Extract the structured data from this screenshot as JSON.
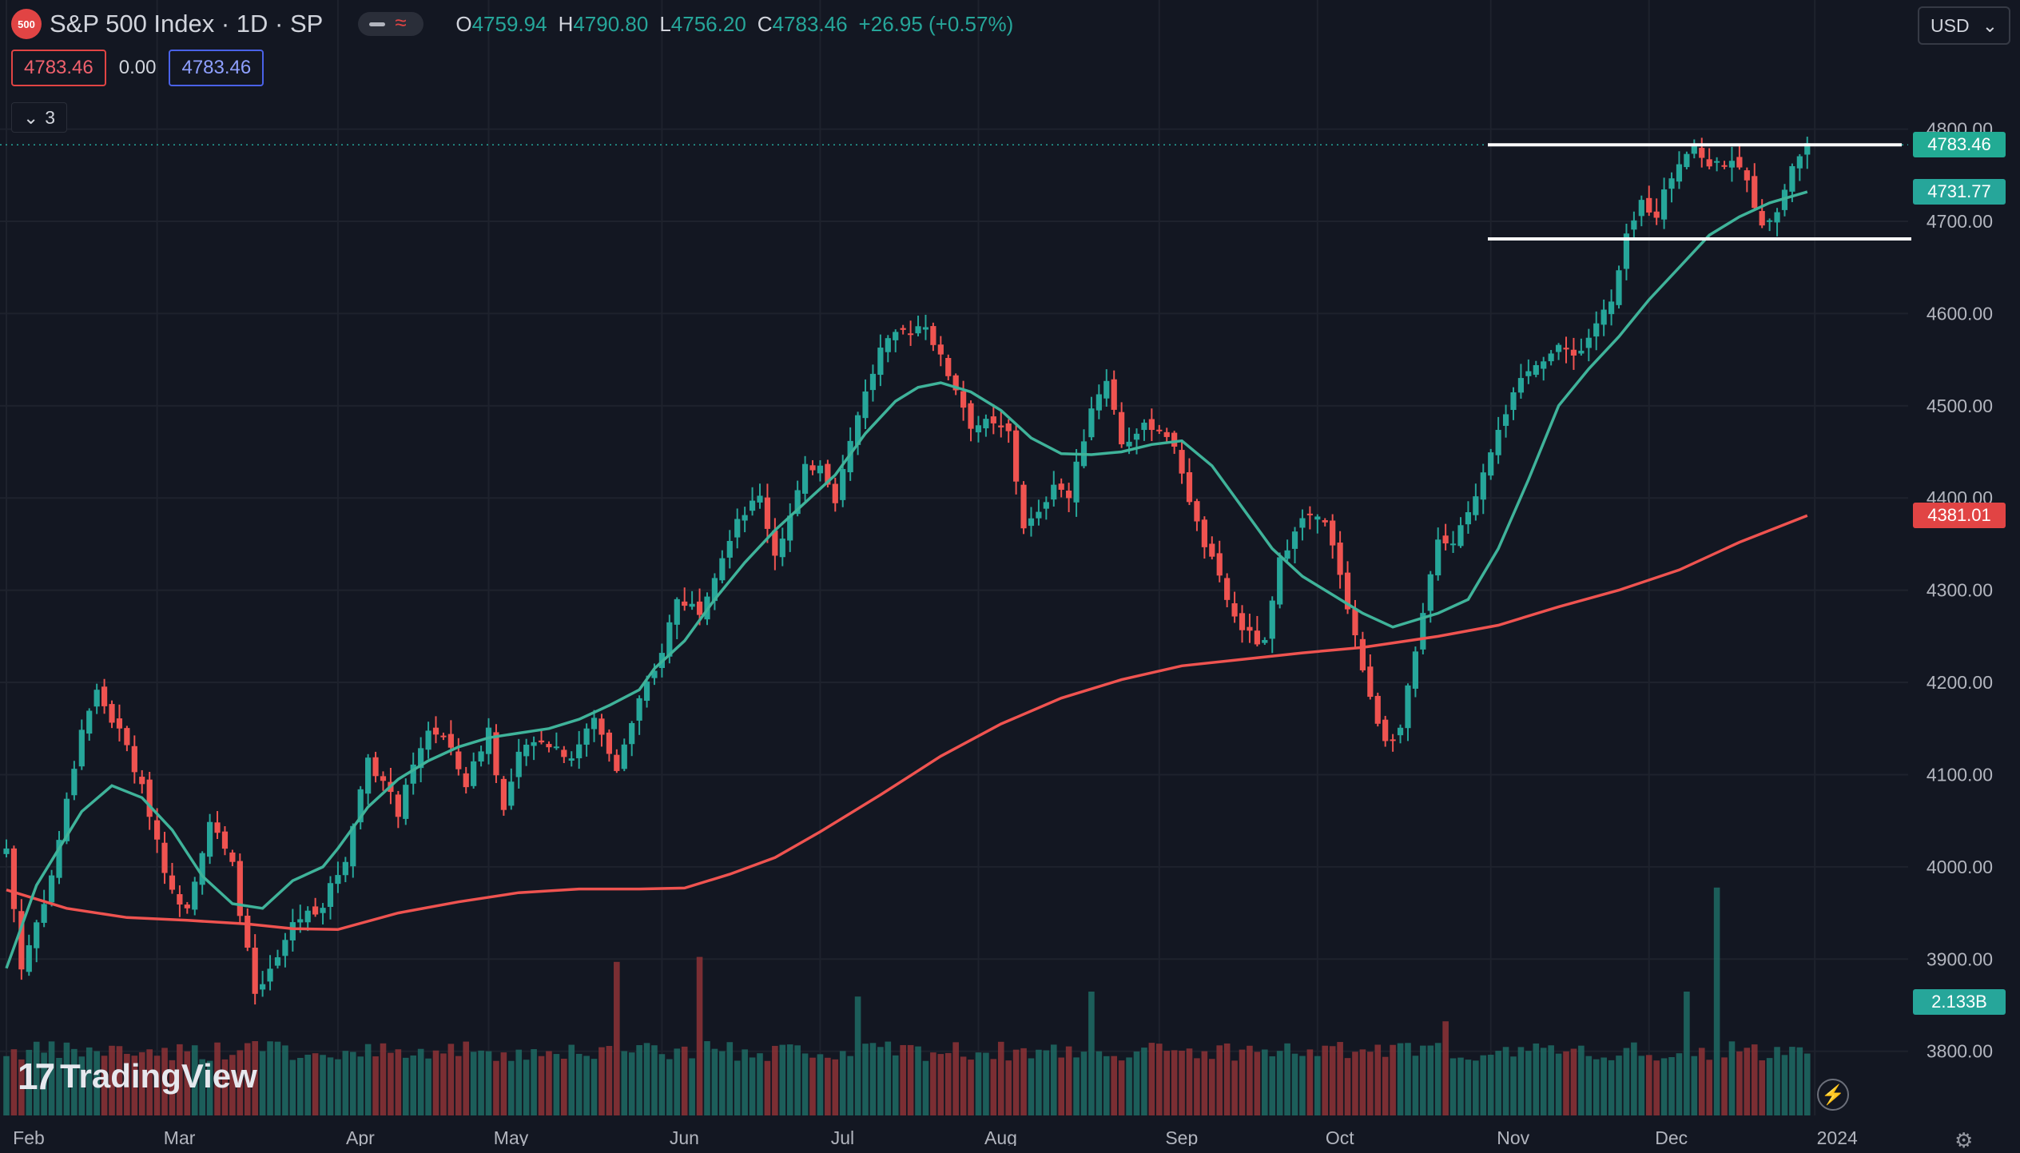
{
  "header": {
    "logo_text": "500",
    "symbol_title": "S&P 500 Index · 1D · SP",
    "ohlc": [
      {
        "key": "O",
        "value": "4759.94"
      },
      {
        "key": "H",
        "value": "4790.80"
      },
      {
        "key": "L",
        "value": "4756.20"
      },
      {
        "key": "C",
        "value": "4783.46"
      }
    ],
    "change": "+26.95 (+0.57%)",
    "sell_price": "4783.46",
    "spread": "0.00",
    "buy_price": "4783.46",
    "collapsed_count": "3",
    "currency": "USD"
  },
  "price_labels": {
    "last": "4783.46",
    "ma20": "4731.77",
    "ma200": "4381.01",
    "volume": "2.133B"
  },
  "watermark": "TradingView",
  "colors": {
    "background": "#131722",
    "up": "#26a69a",
    "down": "#ef5350",
    "ma_fast": "#3fb39a",
    "ma_slow": "#ef5350",
    "level_lines": "#ffffff"
  },
  "chart_data": {
    "type": "candlestick",
    "ylim": [
      3720,
      4830
    ],
    "y_ticks": [
      "4800.00",
      "4700.00",
      "4600.00",
      "4500.00",
      "4400.00",
      "4300.00",
      "4200.00",
      "4100.00",
      "4000.00",
      "3900.00",
      "3800.00"
    ],
    "x_ticks": [
      "Feb",
      "Mar",
      "Apr",
      "May",
      "Jun",
      "Jul",
      "Aug",
      "Sep",
      "Oct",
      "Nov",
      "Dec",
      "2024"
    ],
    "x_tick_days": [
      0,
      20,
      44,
      64,
      87,
      108,
      129,
      153,
      174,
      197,
      218,
      240
    ],
    "horizontal_levels": [
      4783,
      4681
    ],
    "days": 253,
    "anchors": [
      [
        0,
        4020
      ],
      [
        2,
        3890
      ],
      [
        6,
        3990
      ],
      [
        10,
        4150
      ],
      [
        12,
        4190
      ],
      [
        16,
        4130
      ],
      [
        19,
        4060
      ],
      [
        22,
        3970
      ],
      [
        24,
        3960
      ],
      [
        27,
        4050
      ],
      [
        30,
        4000
      ],
      [
        33,
        3860
      ],
      [
        36,
        3900
      ],
      [
        38,
        3940
      ],
      [
        42,
        3960
      ],
      [
        45,
        4010
      ],
      [
        48,
        4120
      ],
      [
        52,
        4060
      ],
      [
        56,
        4150
      ],
      [
        58,
        4140
      ],
      [
        61,
        4090
      ],
      [
        64,
        4150
      ],
      [
        66,
        4060
      ],
      [
        68,
        4120
      ],
      [
        71,
        4140
      ],
      [
        75,
        4120
      ],
      [
        78,
        4160
      ],
      [
        81,
        4110
      ],
      [
        84,
        4180
      ],
      [
        86,
        4210
      ],
      [
        89,
        4290
      ],
      [
        92,
        4280
      ],
      [
        94,
        4320
      ],
      [
        97,
        4380
      ],
      [
        100,
        4400
      ],
      [
        102,
        4340
      ],
      [
        104,
        4380
      ],
      [
        106,
        4430
      ],
      [
        108,
        4440
      ],
      [
        110,
        4400
      ],
      [
        113,
        4490
      ],
      [
        116,
        4560
      ],
      [
        119,
        4580
      ],
      [
        122,
        4590
      ],
      [
        124,
        4550
      ],
      [
        126,
        4520
      ],
      [
        128,
        4480
      ],
      [
        130,
        4480
      ],
      [
        133,
        4470
      ],
      [
        135,
        4370
      ],
      [
        137,
        4380
      ],
      [
        139,
        4420
      ],
      [
        141,
        4400
      ],
      [
        144,
        4500
      ],
      [
        146,
        4530
      ],
      [
        148,
        4460
      ],
      [
        150,
        4470
      ],
      [
        152,
        4480
      ],
      [
        154,
        4470
      ],
      [
        156,
        4430
      ],
      [
        158,
        4370
      ],
      [
        160,
        4330
      ],
      [
        163,
        4270
      ],
      [
        165,
        4250
      ],
      [
        167,
        4240
      ],
      [
        169,
        4330
      ],
      [
        171,
        4370
      ],
      [
        173,
        4380
      ],
      [
        175,
        4370
      ],
      [
        177,
        4320
      ],
      [
        179,
        4250
      ],
      [
        181,
        4180
      ],
      [
        183,
        4140
      ],
      [
        185,
        4150
      ],
      [
        186,
        4190
      ],
      [
        188,
        4270
      ],
      [
        190,
        4360
      ],
      [
        192,
        4350
      ],
      [
        194,
        4380
      ],
      [
        196,
        4430
      ],
      [
        198,
        4480
      ],
      [
        200,
        4510
      ],
      [
        203,
        4550
      ],
      [
        206,
        4560
      ],
      [
        209,
        4560
      ],
      [
        211,
        4590
      ],
      [
        213,
        4610
      ],
      [
        215,
        4680
      ],
      [
        217,
        4720
      ],
      [
        219,
        4710
      ],
      [
        221,
        4750
      ],
      [
        223,
        4780
      ],
      [
        225,
        4770
      ],
      [
        227,
        4760
      ],
      [
        229,
        4770
      ],
      [
        231,
        4740
      ],
      [
        233,
        4700
      ],
      [
        235,
        4710
      ],
      [
        237,
        4760
      ],
      [
        239,
        4783
      ]
    ],
    "ma_fast": [
      [
        0,
        3890
      ],
      [
        4,
        3980
      ],
      [
        10,
        4060
      ],
      [
        14,
        4088
      ],
      [
        18,
        4075
      ],
      [
        22,
        4040
      ],
      [
        26,
        3990
      ],
      [
        30,
        3960
      ],
      [
        34,
        3955
      ],
      [
        38,
        3985
      ],
      [
        42,
        4000
      ],
      [
        44,
        4020
      ],
      [
        48,
        4065
      ],
      [
        52,
        4095
      ],
      [
        56,
        4115
      ],
      [
        60,
        4130
      ],
      [
        64,
        4140
      ],
      [
        68,
        4145
      ],
      [
        72,
        4150
      ],
      [
        76,
        4160
      ],
      [
        80,
        4175
      ],
      [
        84,
        4192
      ],
      [
        86,
        4215
      ],
      [
        90,
        4245
      ],
      [
        94,
        4290
      ],
      [
        98,
        4330
      ],
      [
        102,
        4365
      ],
      [
        106,
        4395
      ],
      [
        110,
        4425
      ],
      [
        114,
        4470
      ],
      [
        118,
        4505
      ],
      [
        121,
        4520
      ],
      [
        124,
        4525
      ],
      [
        128,
        4515
      ],
      [
        132,
        4495
      ],
      [
        136,
        4465
      ],
      [
        140,
        4448
      ],
      [
        144,
        4447
      ],
      [
        148,
        4450
      ],
      [
        152,
        4458
      ],
      [
        156,
        4462
      ],
      [
        160,
        4435
      ],
      [
        164,
        4390
      ],
      [
        168,
        4345
      ],
      [
        172,
        4315
      ],
      [
        176,
        4295
      ],
      [
        180,
        4275
      ],
      [
        184,
        4260
      ],
      [
        186,
        4265
      ],
      [
        190,
        4275
      ],
      [
        194,
        4290
      ],
      [
        198,
        4345
      ],
      [
        202,
        4420
      ],
      [
        206,
        4500
      ],
      [
        210,
        4540
      ],
      [
        214,
        4575
      ],
      [
        218,
        4615
      ],
      [
        222,
        4650
      ],
      [
        226,
        4685
      ],
      [
        230,
        4705
      ],
      [
        234,
        4720
      ],
      [
        239,
        4732
      ]
    ],
    "ma_slow": [
      [
        0,
        3975
      ],
      [
        8,
        3955
      ],
      [
        16,
        3945
      ],
      [
        24,
        3942
      ],
      [
        32,
        3938
      ],
      [
        38,
        3933
      ],
      [
        44,
        3932
      ],
      [
        52,
        3950
      ],
      [
        60,
        3962
      ],
      [
        68,
        3972
      ],
      [
        76,
        3976
      ],
      [
        84,
        3976
      ],
      [
        90,
        3977
      ],
      [
        96,
        3992
      ],
      [
        102,
        4010
      ],
      [
        108,
        4038
      ],
      [
        116,
        4078
      ],
      [
        124,
        4120
      ],
      [
        132,
        4155
      ],
      [
        140,
        4183
      ],
      [
        148,
        4203
      ],
      [
        156,
        4218
      ],
      [
        164,
        4225
      ],
      [
        172,
        4232
      ],
      [
        180,
        4238
      ],
      [
        190,
        4250
      ],
      [
        198,
        4262
      ],
      [
        206,
        4282
      ],
      [
        214,
        4300
      ],
      [
        222,
        4322
      ],
      [
        230,
        4352
      ],
      [
        239,
        4381
      ]
    ],
    "volume": {
      "max_label": "2.133B",
      "spikes": {
        "33": 0.3,
        "81": 0.62,
        "92": 0.64,
        "113": 0.48,
        "144": 0.5,
        "191": 0.38,
        "223": 0.5,
        "227": 0.92
      }
    }
  }
}
